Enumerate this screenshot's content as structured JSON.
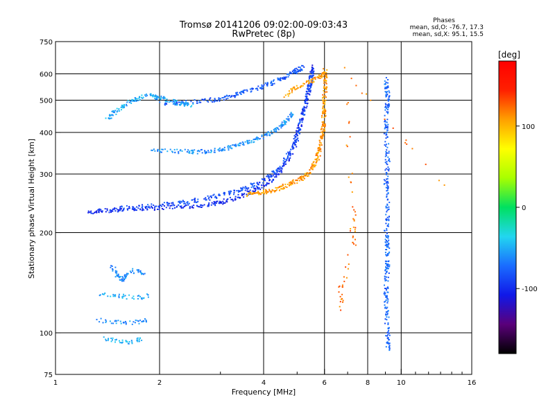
{
  "chart_data": {
    "type": "scatter",
    "title": "Tromsø 20141206 09:02:00-09:03:43",
    "subtitle": "RwPretec (8p)",
    "xlabel": "Frequency [MHz]",
    "ylabel": "Stationary phase Virtual Height [km]",
    "xscale": "log",
    "yscale": "log",
    "xlim": [
      1,
      16
    ],
    "ylim": [
      75,
      750
    ],
    "x_ticks": [
      1,
      2,
      4,
      6,
      8,
      10,
      16
    ],
    "y_ticks": [
      75,
      100,
      200,
      300,
      400,
      500,
      600,
      750
    ],
    "grid": true,
    "stats": {
      "heading": "Phases",
      "o_line": "mean, sd,O: -76.7, 17.3",
      "x_line": "mean, sd,X:  95.1, 15.5"
    },
    "colorbar": {
      "label": "[deg]",
      "range": [
        -180,
        180
      ],
      "ticks": [
        -100,
        0,
        100
      ],
      "colormap": "rainbow",
      "colors": [
        "#000000",
        "#5a007a",
        "#1018e8",
        "#1a6cff",
        "#22d6f0",
        "#00e060",
        "#a8ff00",
        "#ffff00",
        "#ffa000",
        "#ff2000",
        "#ff0000"
      ]
    },
    "traces": [
      {
        "name": "",
        "phase": -100,
        "points": [
          [
            1.22,
            232
          ],
          [
            1.4,
            234
          ],
          [
            1.6,
            236
          ],
          [
            1.9,
            238
          ],
          [
            2.3,
            240
          ],
          [
            2.7,
            243
          ],
          [
            3.0,
            248
          ],
          [
            3.4,
            258
          ],
          [
            3.8,
            270
          ],
          [
            4.2,
            290
          ],
          [
            4.6,
            320
          ],
          [
            4.9,
            370
          ],
          [
            5.1,
            430
          ],
          [
            5.3,
            500
          ],
          [
            5.45,
            580
          ],
          [
            5.55,
            640
          ]
        ]
      },
      {
        "name": "",
        "phase": -85,
        "points": [
          [
            1.5,
            238
          ],
          [
            1.9,
            242
          ],
          [
            2.3,
            247
          ],
          [
            2.7,
            254
          ],
          [
            3.1,
            262
          ],
          [
            3.5,
            272
          ],
          [
            3.9,
            285
          ],
          [
            4.3,
            305
          ],
          [
            4.7,
            345
          ],
          [
            5.0,
            400
          ],
          [
            5.2,
            470
          ],
          [
            5.4,
            550
          ],
          [
            5.5,
            620
          ]
        ]
      },
      {
        "name": "",
        "phase": 110,
        "points": [
          [
            3.6,
            262
          ],
          [
            3.9,
            265
          ],
          [
            4.3,
            270
          ],
          [
            4.7,
            280
          ],
          [
            5.1,
            292
          ],
          [
            5.4,
            305
          ],
          [
            5.65,
            330
          ],
          [
            5.8,
            360
          ],
          [
            5.9,
            400
          ],
          [
            5.95,
            450
          ],
          [
            5.98,
            500
          ],
          [
            6.0,
            560
          ],
          [
            6.0,
            620
          ]
        ]
      },
      {
        "name": "",
        "phase": 110,
        "points": [
          [
            4.6,
            520
          ],
          [
            4.9,
            545
          ],
          [
            5.2,
            560
          ],
          [
            5.5,
            575
          ],
          [
            5.8,
            590
          ],
          [
            6.0,
            610
          ]
        ]
      },
      {
        "name": "",
        "phase": -60,
        "points": [
          [
            1.9,
            355
          ],
          [
            2.3,
            352
          ],
          [
            2.7,
            352
          ],
          [
            3.1,
            360
          ],
          [
            3.5,
            372
          ],
          [
            3.9,
            388
          ],
          [
            4.3,
            408
          ],
          [
            4.6,
            430
          ],
          [
            4.85,
            460
          ]
        ]
      },
      {
        "name": "",
        "phase": -80,
        "points": [
          [
            2.0,
            490
          ],
          [
            2.4,
            495
          ],
          [
            2.9,
            505
          ],
          [
            3.3,
            520
          ],
          [
            3.7,
            540
          ],
          [
            4.1,
            560
          ],
          [
            4.5,
            585
          ],
          [
            4.9,
            612
          ],
          [
            5.2,
            630
          ]
        ]
      },
      {
        "name": "",
        "phase": -50,
        "points": [
          [
            1.4,
            440
          ],
          [
            1.5,
            470
          ],
          [
            1.65,
            500
          ],
          [
            1.85,
            520
          ],
          [
            2.0,
            510
          ],
          [
            2.3,
            490
          ],
          [
            2.5,
            485
          ]
        ]
      },
      {
        "name": "",
        "phase": -60,
        "points": [
          [
            1.45,
            160
          ],
          [
            1.5,
            150
          ],
          [
            1.55,
            145
          ],
          [
            1.6,
            150
          ],
          [
            1.7,
            155
          ],
          [
            1.8,
            150
          ]
        ]
      },
      {
        "name": "",
        "phase": -50,
        "points": [
          [
            1.3,
            132
          ],
          [
            1.5,
            130
          ],
          [
            1.7,
            128
          ],
          [
            1.85,
            130
          ]
        ]
      },
      {
        "name": "",
        "phase": -60,
        "points": [
          [
            1.3,
            110
          ],
          [
            1.5,
            108
          ],
          [
            1.7,
            108
          ],
          [
            1.85,
            110
          ]
        ]
      },
      {
        "name": "",
        "phase": -50,
        "points": [
          [
            1.35,
            97
          ],
          [
            1.5,
            95
          ],
          [
            1.65,
            94
          ],
          [
            1.8,
            97
          ]
        ]
      },
      {
        "name": "",
        "phase": -75,
        "points": [
          [
            9.1,
            90
          ],
          [
            9.1,
            100
          ],
          [
            9.0,
            120
          ],
          [
            9.0,
            140
          ],
          [
            9.1,
            160
          ],
          [
            9.1,
            180
          ],
          [
            9.0,
            200
          ],
          [
            9.1,
            240
          ],
          [
            9.0,
            280
          ],
          [
            9.1,
            330
          ],
          [
            9.0,
            400
          ],
          [
            9.05,
            470
          ],
          [
            9.1,
            520
          ],
          [
            9.0,
            590
          ]
        ]
      },
      {
        "name": "",
        "phase": 120,
        "points": [
          [
            6.65,
            140
          ],
          [
            6.7,
            118
          ],
          [
            7.3,
            245
          ],
          [
            7.3,
            185
          ],
          [
            6.8,
            630
          ],
          [
            13.5,
            266
          ]
        ]
      }
    ]
  }
}
